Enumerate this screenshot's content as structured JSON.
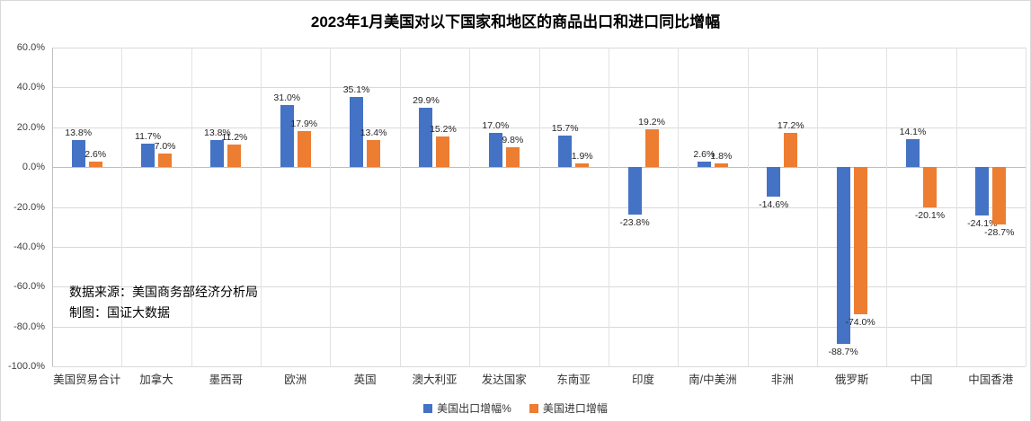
{
  "annotations": {
    "source": "数据来源：美国商务部经济分析局",
    "credit": "制图：国证大数据"
  },
  "colors": {
    "export_series": "#4472C4",
    "import_series": "#ED7D31",
    "gridline": "#d9d9d9",
    "background": "#ffffff"
  },
  "chart_data": {
    "type": "bar",
    "title": "2023年1月美国对以下国家和地区的商品出口和进口同比增幅",
    "categories": [
      "美国贸易合计",
      "加拿大",
      "墨西哥",
      "欧洲",
      "英国",
      "澳大利亚",
      "发达国家",
      "东南亚",
      "印度",
      "南/中美洲",
      "非洲",
      "俄罗斯",
      "中国",
      "中国香港"
    ],
    "series": [
      {
        "name": "美国出口增幅%",
        "color": "#4472C4",
        "values": [
          13.8,
          11.7,
          13.8,
          31.0,
          35.1,
          29.9,
          17.0,
          15.7,
          -23.8,
          2.6,
          -14.6,
          -88.7,
          14.1,
          -24.1
        ]
      },
      {
        "name": "美国进口增幅",
        "color": "#ED7D31",
        "values": [
          2.6,
          7.0,
          11.2,
          17.9,
          13.4,
          15.2,
          9.8,
          1.9,
          19.2,
          1.8,
          17.2,
          -74.0,
          -20.1,
          -28.7
        ]
      }
    ],
    "ylim": [
      -100,
      60
    ],
    "ytick_step": 20,
    "ytick_format": "percent_1dp",
    "data_label_format": "percent_1dp",
    "grid": true,
    "legend_position": "bottom",
    "xlabel": "",
    "ylabel": ""
  }
}
